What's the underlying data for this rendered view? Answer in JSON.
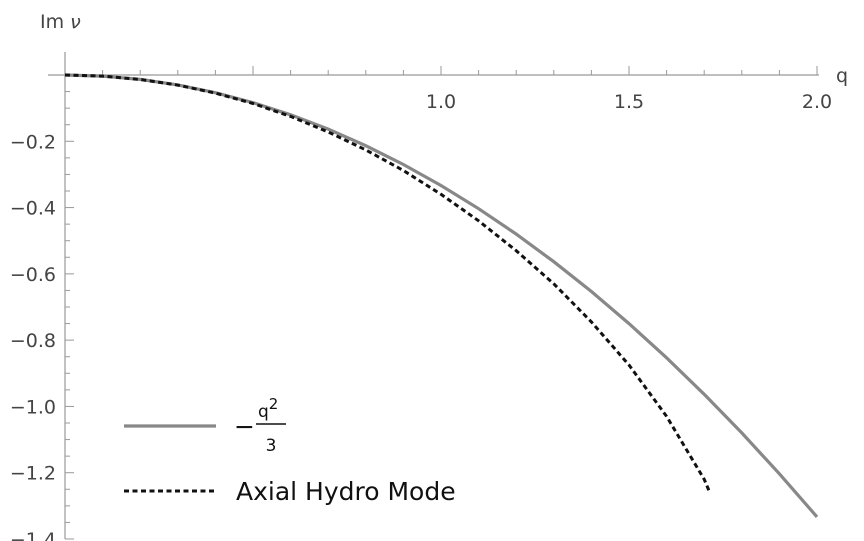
{
  "chart_data": {
    "type": "line",
    "xlabel": "q",
    "ylabel": "Im ν",
    "xlim": [
      0,
      2.0
    ],
    "ylim": [
      -1.4,
      0
    ],
    "x_ticks": [
      1.0,
      1.5,
      2.0
    ],
    "x_tick_labels": [
      "1.0",
      "1.5",
      "2.0"
    ],
    "y_ticks": [
      -0.2,
      -0.4,
      -0.6,
      -0.8,
      -1.0,
      -1.2,
      -1.4
    ],
    "y_tick_labels": [
      "−0.2",
      "−0.4",
      "−0.6",
      "−0.8",
      "−1.0",
      "−1.2",
      "−1.4"
    ],
    "grid": false,
    "legend_position": "bottom-left",
    "series": [
      {
        "name": "−q²/3",
        "legend_parts": {
          "minus": "−",
          "numerator": "q",
          "exponent": "2",
          "denominator": "3"
        },
        "color": "#888888",
        "style": "solid",
        "x": [
          0,
          0.1,
          0.2,
          0.3,
          0.4,
          0.5,
          0.6,
          0.7,
          0.8,
          0.9,
          1.0,
          1.1,
          1.2,
          1.3,
          1.4,
          1.5,
          1.6,
          1.7,
          1.8,
          1.9,
          2.0
        ],
        "y": [
          0,
          -0.0033,
          -0.0133,
          -0.03,
          -0.0533,
          -0.0833,
          -0.12,
          -0.1633,
          -0.2133,
          -0.27,
          -0.3333,
          -0.4033,
          -0.48,
          -0.5633,
          -0.6533,
          -0.75,
          -0.8533,
          -0.9633,
          -1.08,
          -1.2033,
          -1.3333
        ]
      },
      {
        "name": "Axial Hydro Mode",
        "color": "#111111",
        "style": "dashed",
        "x": [
          0,
          0.1,
          0.2,
          0.3,
          0.4,
          0.5,
          0.6,
          0.7,
          0.8,
          0.9,
          1.0,
          1.1,
          1.2,
          1.3,
          1.4,
          1.5,
          1.6,
          1.7,
          1.715
        ],
        "y": [
          0,
          -0.0033,
          -0.0135,
          -0.0305,
          -0.0545,
          -0.086,
          -0.125,
          -0.172,
          -0.226,
          -0.288,
          -0.36,
          -0.44,
          -0.53,
          -0.63,
          -0.745,
          -0.875,
          -1.03,
          -1.22,
          -1.26
        ]
      }
    ]
  }
}
